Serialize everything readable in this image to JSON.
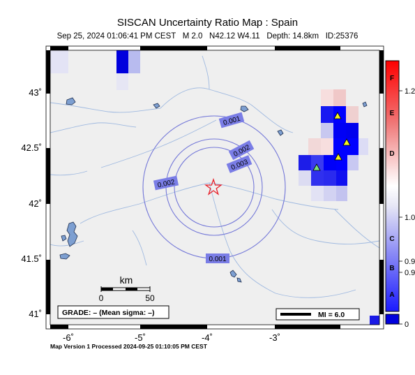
{
  "title": "SISCAN Uncertainty Ratio Map : Spain",
  "subtitle": {
    "datetime": "Sep 25, 2024 01:06:41 PM CEST",
    "magnitude": "M 2.0",
    "location": "N42.12 W4.11",
    "depth": "Depth: 14.8km",
    "event_id": "ID:25376"
  },
  "map": {
    "lat_labels": [
      "43˚",
      "42.5˚",
      "42˚",
      "41.5˚",
      "41˚"
    ],
    "lon_labels": [
      "-6˚",
      "-5˚",
      "-4˚",
      "-3˚"
    ],
    "contours": [
      {
        "label": "0.001",
        "value": 0.001
      },
      {
        "label": "0.002",
        "value": 0.002
      },
      {
        "label": "0.003",
        "value": 0.003
      },
      {
        "label": "0.002",
        "value": 0.002
      },
      {
        "label": "0.001",
        "value": 0.001
      }
    ],
    "epicenter": {
      "lat": 42.12,
      "lon": -4.11
    },
    "scale_bar": {
      "unit": "km",
      "ticks": [
        "0",
        "50"
      ]
    },
    "grade_box": "GRADE: – (Mean sigma: –)",
    "mi_legend": "MI = 6.0",
    "colors": {
      "water": "#7d9fd1",
      "contour": "#7478d8",
      "label_box": "#7a7de6",
      "star": "#e8202a",
      "station": "#f5f51e",
      "station_alt": "#7de07d"
    }
  },
  "colorbar": {
    "letters": [
      "F",
      "E",
      "D",
      "C",
      "B",
      "A"
    ],
    "values": [
      "1.2",
      "1.0",
      "0.9",
      "0.9",
      "0"
    ]
  },
  "footer": "Map Version 1 Processed 2024-09-25 01:10:05 PM CEST"
}
